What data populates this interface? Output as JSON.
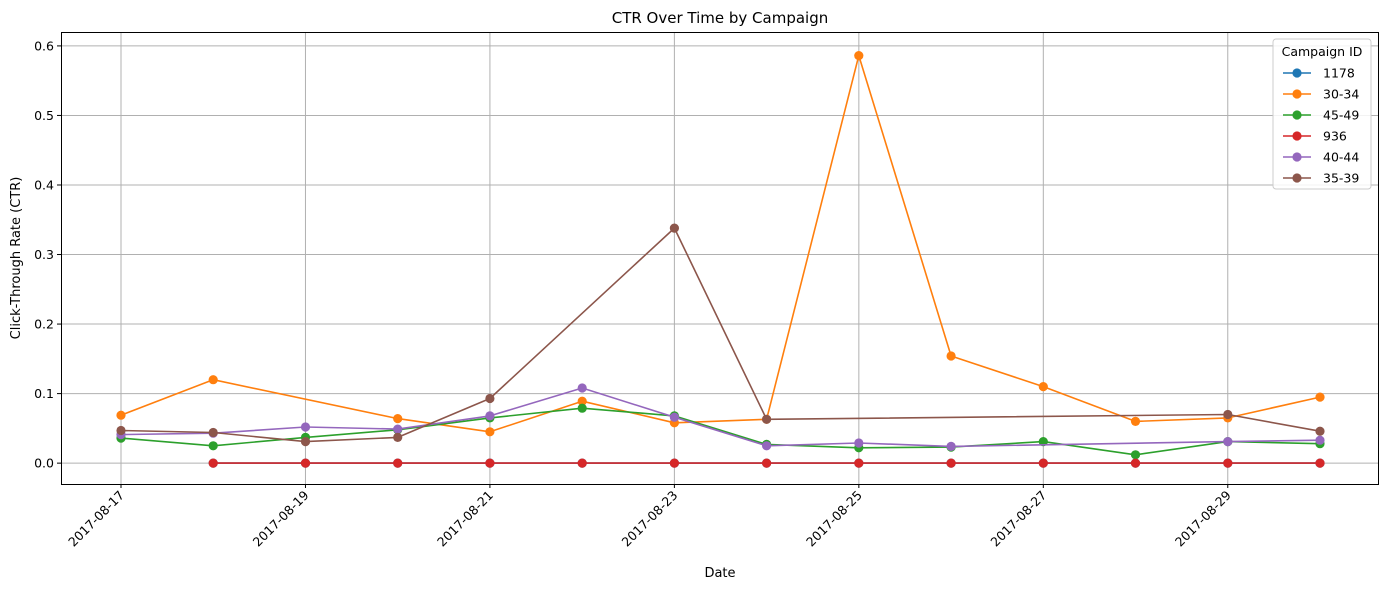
{
  "chart_data": {
    "type": "line",
    "title": "CTR Over Time by Campaign",
    "xlabel": "Date",
    "ylabel": "Click-Through Rate (CTR)",
    "x": [
      "2017-08-17",
      "2017-08-18",
      "2017-08-19",
      "2017-08-20",
      "2017-08-21",
      "2017-08-22",
      "2017-08-23",
      "2017-08-24",
      "2017-08-25",
      "2017-08-26",
      "2017-08-27",
      "2017-08-28",
      "2017-08-29",
      "2017-08-30"
    ],
    "x_tick_labels": [
      "2017-08-17",
      "2017-08-19",
      "2017-08-21",
      "2017-08-23",
      "2017-08-25",
      "2017-08-27",
      "2017-08-29"
    ],
    "ylim": [
      -0.03,
      0.62
    ],
    "y_ticks": [
      0.0,
      0.1,
      0.2,
      0.3,
      0.4,
      0.5,
      0.6
    ],
    "y_tick_labels": [
      "0.0",
      "0.1",
      "0.2",
      "0.3",
      "0.4",
      "0.5",
      "0.6"
    ],
    "grid": true,
    "legend": {
      "title": "Campaign ID",
      "placement": "top-right"
    },
    "series": [
      {
        "name": "1178",
        "color": "#1f77b4",
        "marker": "circle",
        "values": [
          null,
          0.0,
          0.0,
          0.0,
          0.0,
          0.0,
          0.0,
          0.0,
          0.0,
          0.0,
          0.0,
          0.0,
          0.0,
          0.0
        ]
      },
      {
        "name": "30-34",
        "color": "#ff7f0e",
        "marker": "circle",
        "values": [
          0.069,
          0.12,
          null,
          0.064,
          0.045,
          0.089,
          0.058,
          0.063,
          0.586,
          0.154,
          0.11,
          0.06,
          0.065,
          0.095
        ]
      },
      {
        "name": "45-49",
        "color": "#2ca02c",
        "marker": "circle",
        "values": [
          0.036,
          0.025,
          0.037,
          0.048,
          0.065,
          0.079,
          0.068,
          0.027,
          0.022,
          0.023,
          0.031,
          0.012,
          0.031,
          0.028
        ]
      },
      {
        "name": "936",
        "color": "#d62728",
        "marker": "circle",
        "values": [
          null,
          0.0,
          0.0,
          0.0,
          0.0,
          0.0,
          0.0,
          0.0,
          0.0,
          0.0,
          0.0,
          0.0,
          0.0,
          0.0
        ]
      },
      {
        "name": "40-44",
        "color": "#9467bd",
        "marker": "circle",
        "values": [
          0.041,
          0.043,
          0.052,
          0.049,
          0.068,
          0.108,
          0.066,
          0.025,
          0.029,
          0.024,
          null,
          null,
          0.031,
          0.033
        ]
      },
      {
        "name": "35-39",
        "color": "#8c564b",
        "marker": "circle",
        "values": [
          0.047,
          0.044,
          0.031,
          0.037,
          0.093,
          null,
          0.338,
          0.063,
          null,
          null,
          null,
          null,
          0.07,
          0.046
        ]
      }
    ]
  }
}
